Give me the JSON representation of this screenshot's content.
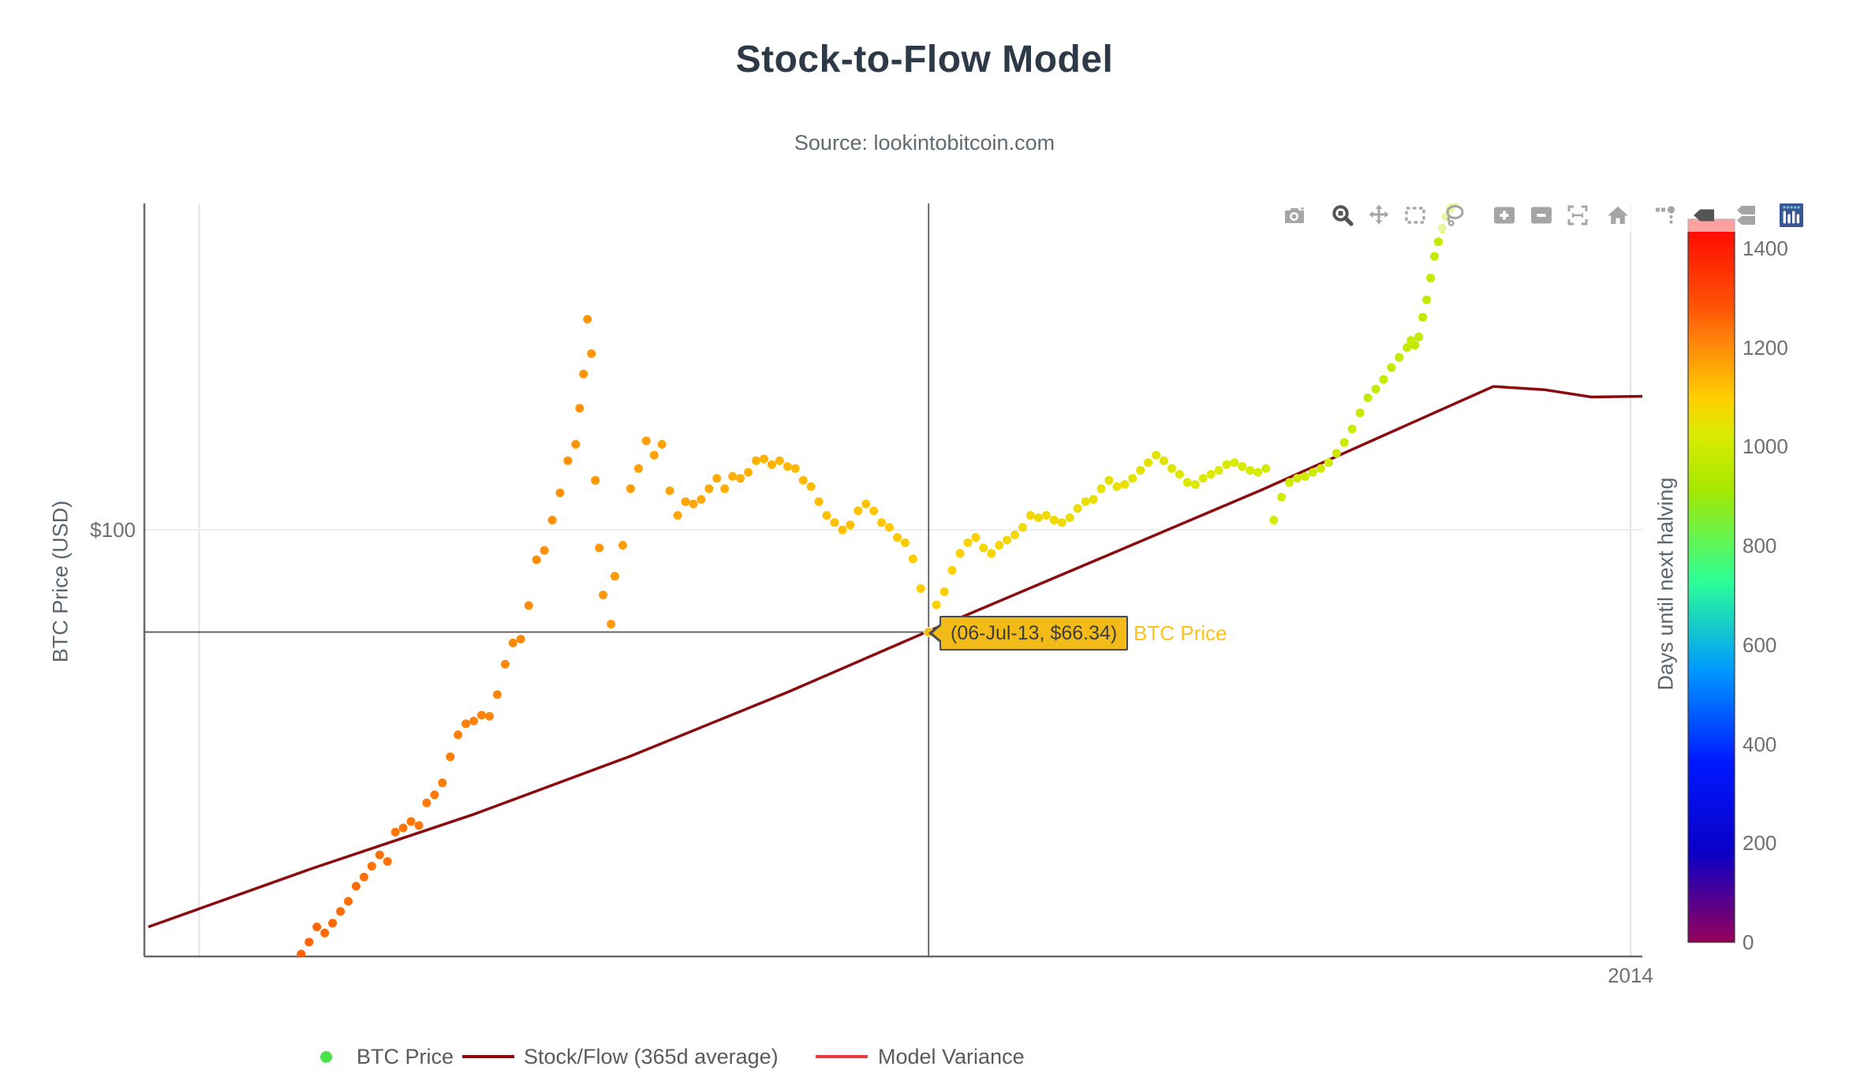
{
  "title": "Stock-to-Flow Model",
  "subtitle": "Source: lookintobitcoin.com",
  "y_axis": {
    "title": "BTC Price (USD)",
    "tick_label": "$100",
    "tick_value": 100,
    "type": "log"
  },
  "x_axis": {
    "tick_label": "2014",
    "range": [
      "2012-12-18",
      "2014-01-04"
    ],
    "gridlines": [
      "2013-01-01",
      "2014-01-01"
    ]
  },
  "tooltip": {
    "text": "(06-Jul-13, $66.34)",
    "series_label": "BTC Price",
    "date": "2013-07-06",
    "price": 66.34,
    "bg_color": "#f2bb17",
    "border_color": "#4a4a4a",
    "text_color": "#3e3e3e",
    "label_color": "#fdc11e"
  },
  "legend": {
    "items": [
      {
        "label": "BTC Price",
        "type": "marker",
        "color": "#4be24b"
      },
      {
        "label": "Stock/Flow (365d average)",
        "type": "line",
        "color": "#8b0a0e"
      },
      {
        "label": "Model Variance",
        "type": "line",
        "color": "#ed3b3b"
      }
    ]
  },
  "modebar": {
    "buttons": [
      {
        "name": "camera",
        "active": false
      },
      {
        "name": "zoom",
        "active": true
      },
      {
        "name": "pan",
        "active": false
      },
      {
        "name": "box-select",
        "active": false
      },
      {
        "name": "lasso",
        "active": false
      },
      {
        "name": "zoom-in",
        "active": false
      },
      {
        "name": "zoom-out",
        "active": false
      },
      {
        "name": "autoscale",
        "active": false
      },
      {
        "name": "reset-home",
        "active": false
      },
      {
        "name": "spike-lines",
        "active": false
      },
      {
        "name": "hover-closest",
        "active": true
      },
      {
        "name": "hover-compare",
        "active": false
      },
      {
        "name": "plotly-logo",
        "active": false
      }
    ]
  },
  "colorbar": {
    "title": "Days until next halving",
    "min": 0,
    "max": 1459,
    "ticks": [
      {
        "value": 1400,
        "label": "1400"
      },
      {
        "value": 1200,
        "label": "1200"
      },
      {
        "value": 1000,
        "label": "1000"
      },
      {
        "value": 800,
        "label": "800"
      },
      {
        "value": 600,
        "label": "600"
      },
      {
        "value": 400,
        "label": "400"
      },
      {
        "value": 200,
        "label": "200"
      },
      {
        "value": 0,
        "label": "0"
      }
    ],
    "colorscale": [
      [
        0.0,
        "#96005a"
      ],
      [
        0.125,
        "#0a00c8"
      ],
      [
        0.25,
        "#0019ff"
      ],
      [
        0.375,
        "#0098ff"
      ],
      [
        0.5,
        "#2cff96"
      ],
      [
        0.625,
        "#a5e800"
      ],
      [
        0.7,
        "#d8eb00"
      ],
      [
        0.754,
        "#ffce00"
      ],
      [
        0.823,
        "#ff8c0a"
      ],
      [
        0.88,
        "#ff5205"
      ],
      [
        1.0,
        "#ff0000"
      ]
    ],
    "halving_date": "2016-07-09"
  },
  "chart_data": {
    "type": "scatter",
    "title": "Stock-to-Flow Model",
    "xlabel": "",
    "ylabel": "BTC Price (USD)",
    "y_scale": "log",
    "ylim": [
      17.98,
      371
    ],
    "x_range": [
      "2012-12-18",
      "2014-01-04"
    ],
    "color_by": "days until next halving (halving 2016-07-09)",
    "series": [
      {
        "name": "BTC Price",
        "type": "markers",
        "points": [
          [
            "2013-01-27",
            18.2
          ],
          [
            "2013-01-29",
            19.1
          ],
          [
            "2013-01-31",
            20.3
          ],
          [
            "2013-02-02",
            19.8
          ],
          [
            "2013-02-04",
            20.6
          ],
          [
            "2013-02-06",
            21.6
          ],
          [
            "2013-02-08",
            22.5
          ],
          [
            "2013-02-10",
            23.9
          ],
          [
            "2013-02-12",
            24.8
          ],
          [
            "2013-02-14",
            25.9
          ],
          [
            "2013-02-16",
            27.1
          ],
          [
            "2013-02-18",
            26.4
          ],
          [
            "2013-02-20",
            29.7
          ],
          [
            "2013-02-22",
            30.2
          ],
          [
            "2013-02-24",
            31.0
          ],
          [
            "2013-02-26",
            30.5
          ],
          [
            "2013-02-28",
            33.4
          ],
          [
            "2013-03-02",
            34.5
          ],
          [
            "2013-03-04",
            36.2
          ],
          [
            "2013-03-06",
            40.2
          ],
          [
            "2013-03-08",
            43.9
          ],
          [
            "2013-03-10",
            45.9
          ],
          [
            "2013-03-12",
            46.4
          ],
          [
            "2013-03-14",
            47.5
          ],
          [
            "2013-03-16",
            47.3
          ],
          [
            "2013-03-18",
            51.6
          ],
          [
            "2013-03-20",
            58.3
          ],
          [
            "2013-03-22",
            63.5
          ],
          [
            "2013-03-24",
            64.5
          ],
          [
            "2013-03-26",
            73.8
          ],
          [
            "2013-03-28",
            88.7
          ],
          [
            "2013-03-30",
            92.1
          ],
          [
            "2013-04-01",
            104
          ],
          [
            "2013-04-03",
            116
          ],
          [
            "2013-04-05",
            132
          ],
          [
            "2013-04-07",
            141
          ],
          [
            "2013-04-08",
            163
          ],
          [
            "2013-04-09",
            187
          ],
          [
            "2013-04-10",
            233
          ],
          [
            "2013-04-11",
            203
          ],
          [
            "2013-04-12",
            122
          ],
          [
            "2013-04-13",
            93
          ],
          [
            "2013-04-14",
            77
          ],
          [
            "2013-04-16",
            68.5
          ],
          [
            "2013-04-17",
            83
          ],
          [
            "2013-04-19",
            94
          ],
          [
            "2013-04-21",
            118
          ],
          [
            "2013-04-23",
            128
          ],
          [
            "2013-04-25",
            143
          ],
          [
            "2013-04-27",
            135
          ],
          [
            "2013-04-29",
            141
          ],
          [
            "2013-05-01",
            117
          ],
          [
            "2013-05-03",
            106
          ],
          [
            "2013-05-05",
            112
          ],
          [
            "2013-05-07",
            111
          ],
          [
            "2013-05-09",
            113
          ],
          [
            "2013-05-11",
            118
          ],
          [
            "2013-05-13",
            123
          ],
          [
            "2013-05-15",
            118
          ],
          [
            "2013-05-17",
            124
          ],
          [
            "2013-05-19",
            123
          ],
          [
            "2013-05-21",
            126
          ],
          [
            "2013-05-23",
            132
          ],
          [
            "2013-05-25",
            133
          ],
          [
            "2013-05-27",
            130
          ],
          [
            "2013-05-29",
            132
          ],
          [
            "2013-05-31",
            129
          ],
          [
            "2013-06-02",
            128
          ],
          [
            "2013-06-04",
            122
          ],
          [
            "2013-06-06",
            119
          ],
          [
            "2013-06-08",
            112
          ],
          [
            "2013-06-10",
            106
          ],
          [
            "2013-06-12",
            103
          ],
          [
            "2013-06-14",
            100
          ],
          [
            "2013-06-16",
            102
          ],
          [
            "2013-06-18",
            108
          ],
          [
            "2013-06-20",
            111
          ],
          [
            "2013-06-22",
            108
          ],
          [
            "2013-06-24",
            103
          ],
          [
            "2013-06-26",
            101
          ],
          [
            "2013-06-28",
            97
          ],
          [
            "2013-06-30",
            95
          ],
          [
            "2013-07-02",
            89
          ],
          [
            "2013-07-04",
            79
          ],
          [
            "2013-07-06",
            66.34
          ],
          [
            "2013-07-08",
            74
          ],
          [
            "2013-07-10",
            78
          ],
          [
            "2013-07-12",
            85
          ],
          [
            "2013-07-14",
            91
          ],
          [
            "2013-07-16",
            95
          ],
          [
            "2013-07-18",
            97
          ],
          [
            "2013-07-20",
            93
          ],
          [
            "2013-07-22",
            91
          ],
          [
            "2013-07-24",
            94
          ],
          [
            "2013-07-26",
            96
          ],
          [
            "2013-07-28",
            98
          ],
          [
            "2013-07-30",
            101
          ],
          [
            "2013-08-01",
            106
          ],
          [
            "2013-08-03",
            105
          ],
          [
            "2013-08-05",
            106
          ],
          [
            "2013-08-07",
            104
          ],
          [
            "2013-08-09",
            103
          ],
          [
            "2013-08-11",
            105
          ],
          [
            "2013-08-13",
            109
          ],
          [
            "2013-08-15",
            112
          ],
          [
            "2013-08-17",
            113
          ],
          [
            "2013-08-19",
            118
          ],
          [
            "2013-08-21",
            122
          ],
          [
            "2013-08-23",
            119
          ],
          [
            "2013-08-25",
            120
          ],
          [
            "2013-08-27",
            123
          ],
          [
            "2013-08-29",
            127
          ],
          [
            "2013-08-31",
            131
          ],
          [
            "2013-09-02",
            135
          ],
          [
            "2013-09-04",
            132
          ],
          [
            "2013-09-06",
            128
          ],
          [
            "2013-09-08",
            125
          ],
          [
            "2013-09-10",
            121
          ],
          [
            "2013-09-12",
            120
          ],
          [
            "2013-09-14",
            123
          ],
          [
            "2013-09-16",
            125
          ],
          [
            "2013-09-18",
            127
          ],
          [
            "2013-09-20",
            130
          ],
          [
            "2013-09-22",
            131
          ],
          [
            "2013-09-24",
            129
          ],
          [
            "2013-09-26",
            127
          ],
          [
            "2013-09-28",
            126
          ],
          [
            "2013-09-30",
            128
          ],
          [
            "2013-10-02",
            104
          ],
          [
            "2013-10-04",
            114
          ],
          [
            "2013-10-06",
            121
          ],
          [
            "2013-10-08",
            123
          ],
          [
            "2013-10-10",
            124
          ],
          [
            "2013-10-12",
            126
          ],
          [
            "2013-10-14",
            128
          ],
          [
            "2013-10-16",
            131
          ],
          [
            "2013-10-18",
            136
          ],
          [
            "2013-10-20",
            142
          ],
          [
            "2013-10-22",
            150
          ],
          [
            "2013-10-24",
            160
          ],
          [
            "2013-10-26",
            170
          ],
          [
            "2013-10-28",
            176
          ],
          [
            "2013-10-30",
            183
          ],
          [
            "2013-11-01",
            192
          ],
          [
            "2013-11-03",
            200
          ],
          [
            "2013-11-05",
            208
          ],
          [
            "2013-11-06",
            214
          ],
          [
            "2013-11-07",
            210
          ],
          [
            "2013-11-08",
            217
          ],
          [
            "2013-11-09",
            235
          ],
          [
            "2013-11-10",
            252
          ],
          [
            "2013-11-11",
            275
          ],
          [
            "2013-11-12",
            300
          ],
          [
            "2013-11-13",
            318
          ],
          [
            "2013-11-14",
            336
          ],
          [
            "2013-11-15",
            352
          ],
          [
            "2013-11-16",
            363
          ],
          [
            "2013-11-17",
            370
          ]
        ]
      },
      {
        "name": "Stock/Flow (365d average)",
        "type": "line",
        "color": "#8b0a0e",
        "points": [
          [
            "2012-12-19",
            20.3
          ],
          [
            "2013-01-30",
            25.7
          ],
          [
            "2013-03-12",
            31.9
          ],
          [
            "2013-04-21",
            40.3
          ],
          [
            "2013-05-31",
            52.1
          ],
          [
            "2013-07-06",
            66.6
          ],
          [
            "2013-08-20",
            89.9
          ],
          [
            "2013-09-29",
            117.5
          ],
          [
            "2013-11-27",
            177.9
          ],
          [
            "2013-12-10",
            175.6
          ],
          [
            "2013-12-22",
            170.5
          ],
          [
            "2014-01-04",
            171.0
          ]
        ]
      },
      {
        "name": "Model Variance",
        "type": "line",
        "color": "#ed3b3b",
        "points": []
      }
    ],
    "legend_position": "bottom-center",
    "grid": "minimal"
  }
}
